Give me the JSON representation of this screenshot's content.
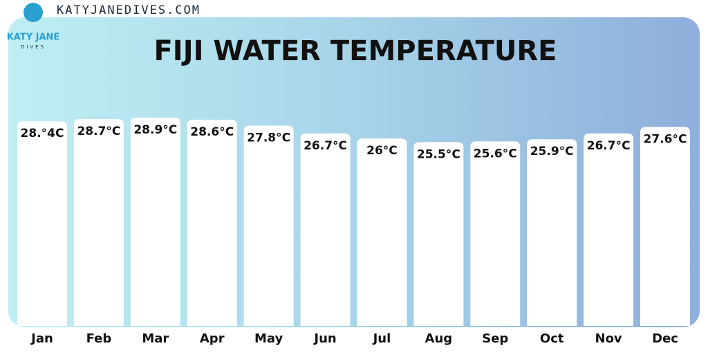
{
  "site": "KATYJANEDIVES.COM",
  "logo": {
    "name": "KATY JANE",
    "tagline": "DIVES"
  },
  "chart_data": {
    "type": "bar",
    "title": "FIJI WATER TEMPERATURE",
    "categories": [
      "Jan",
      "Feb",
      "Mar",
      "Apr",
      "May",
      "Jun",
      "Jul",
      "Aug",
      "Sep",
      "Oct",
      "Nov",
      "Dec"
    ],
    "values": [
      28.4,
      28.7,
      28.9,
      28.6,
      27.8,
      26.7,
      26,
      25.5,
      25.6,
      25.9,
      26.7,
      27.6
    ],
    "value_labels": [
      "28.°4C",
      "28.7°C",
      "28.9°C",
      "28.6°C",
      "27.8°C",
      "26.7°C",
      "26°C",
      "25.5°C",
      "25.6°C",
      "25.9°C",
      "26.7°C",
      "27.6°C"
    ],
    "color": "#ffffff"
  }
}
